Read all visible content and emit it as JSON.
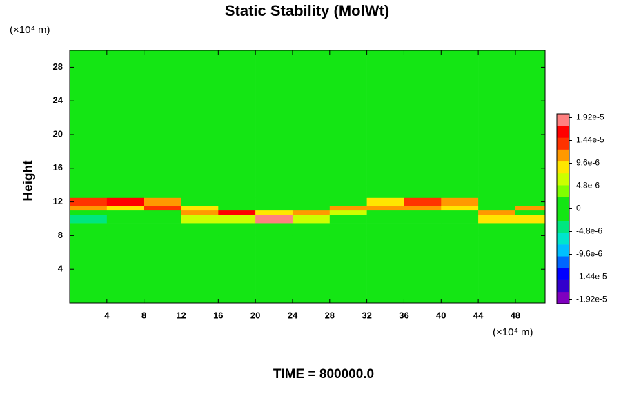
{
  "chart_data": {
    "type": "heatmap",
    "title": "Static Stability (MolWt)",
    "ylabel": "Height",
    "y_unit": "(×10⁴ m)",
    "x_unit": "(×10⁴ m)",
    "footer": "TIME = 800000.0",
    "xlim": [
      0,
      51.2
    ],
    "ylim": [
      0,
      30
    ],
    "xticks": [
      4,
      8,
      12,
      16,
      20,
      24,
      28,
      32,
      36,
      40,
      44,
      48
    ],
    "yticks": [
      4,
      8,
      12,
      16,
      20,
      24,
      28
    ],
    "x_edges": [
      0,
      4,
      8,
      12,
      16,
      20,
      24,
      28,
      32,
      36,
      40,
      44,
      48,
      51.2
    ],
    "y_edges": [
      0,
      8,
      9.5,
      10.5,
      11,
      11.5,
      12.5,
      14,
      18,
      30
    ],
    "z": [
      [
        0,
        0,
        0,
        0,
        0,
        0,
        0,
        0,
        0,
        0,
        0,
        0,
        0
      ],
      [
        0,
        0,
        0,
        0,
        0,
        0,
        0,
        0,
        -2e-06,
        0,
        0,
        0,
        0
      ],
      [
        -4e-06,
        0,
        0,
        6e-06,
        6e-06,
        1.9e-05,
        6e-06,
        0,
        0,
        0,
        0,
        8e-06,
        8e-06
      ],
      [
        0,
        0,
        0,
        1.2e-05,
        1.6e-05,
        8e-06,
        1e-05,
        6e-06,
        0,
        0,
        0,
        1e-05,
        0
      ],
      [
        1e-05,
        8e-06,
        1.4e-05,
        8e-06,
        0,
        0,
        0,
        1e-05,
        1.2e-05,
        1e-05,
        8e-06,
        0,
        1.2e-05
      ],
      [
        1.4e-05,
        1.6e-05,
        1.2e-05,
        0,
        0,
        0,
        0,
        0,
        8e-06,
        1.4e-05,
        1.2e-05,
        0,
        0
      ],
      [
        0,
        0,
        0,
        0,
        0,
        0,
        0,
        0,
        0,
        0,
        0,
        0,
        0
      ],
      [
        2e-06,
        2e-06,
        2e-06,
        2e-06,
        2e-06,
        2e-06,
        2e-06,
        2e-06,
        2e-06,
        2e-06,
        2e-06,
        2e-06,
        2e-06
      ],
      [
        0,
        0,
        0,
        0,
        0,
        0,
        0,
        0,
        0,
        0,
        0,
        0,
        0
      ]
    ],
    "clim": [
      -2e-05,
      2e-05
    ],
    "colormap": [
      "#7f00bf",
      "#3300cc",
      "#0000ff",
      "#0066ff",
      "#00bfff",
      "#00e5cc",
      "#00e680",
      "#14e614",
      "#14e614",
      "#80ff00",
      "#ccff00",
      "#ffe600",
      "#ff9900",
      "#ff3300",
      "#ff0000",
      "#ff8080"
    ],
    "cticks": [
      {
        "value": 1.92e-05,
        "label": "1.92e-5"
      },
      {
        "value": 1.44e-05,
        "label": "1.44e-5"
      },
      {
        "value": 9.6e-06,
        "label": "9.6e-6"
      },
      {
        "value": 4.8e-06,
        "label": "4.8e-6"
      },
      0,
      {
        "value": -4.8e-06,
        "label": "-4.8e-6"
      },
      {
        "value": -9.6e-06,
        "label": "-9.6e-6"
      },
      {
        "value": -1.44e-05,
        "label": "-1.44e-5"
      },
      {
        "value": -1.92e-05,
        "label": "-1.92e-5"
      }
    ]
  }
}
